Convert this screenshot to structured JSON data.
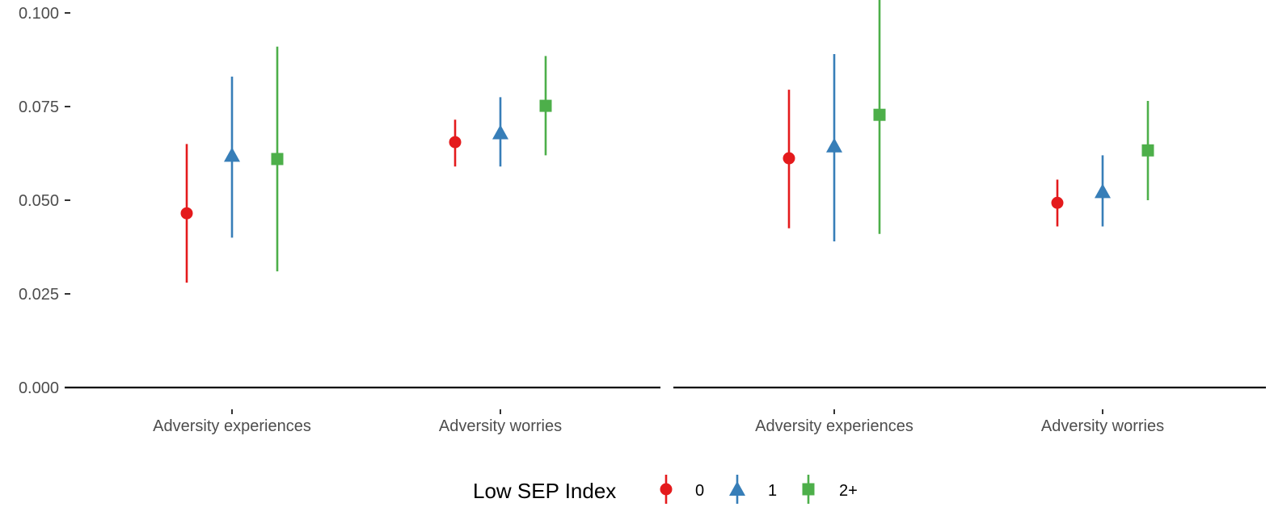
{
  "chart_data": {
    "type": "scatter",
    "subtype": "point-range",
    "ylim": [
      0,
      0.1
    ],
    "y_ticks": [
      "0.000",
      "0.025",
      "0.050",
      "0.075",
      "0.100"
    ],
    "y_tick_values": [
      0,
      0.025,
      0.05,
      0.075,
      0.1
    ],
    "categories": [
      "Adversity experiences",
      "Adversity worries"
    ],
    "legend": {
      "title": "Low SEP Index",
      "position": "bottom",
      "entries": [
        {
          "label": "0",
          "color": "#e41a1c",
          "shape": "circle"
        },
        {
          "label": "1",
          "color": "#377eb8",
          "shape": "triangle"
        },
        {
          "label": "2+",
          "color": "#4daf4a",
          "shape": "square"
        }
      ]
    },
    "panels": [
      {
        "series": [
          {
            "name": "0",
            "values": [
              0.0465,
              0.0655
            ],
            "lower": [
              0.028,
              0.059
            ],
            "upper": [
              0.065,
              0.0715
            ]
          },
          {
            "name": "1",
            "values": [
              0.062,
              0.068
            ],
            "lower": [
              0.04,
              0.059
            ],
            "upper": [
              0.083,
              0.0775
            ]
          },
          {
            "name": "2+",
            "values": [
              0.061,
              0.0752
            ],
            "lower": [
              0.031,
              0.062
            ],
            "upper": [
              0.091,
              0.0885
            ]
          }
        ]
      },
      {
        "series": [
          {
            "name": "0",
            "values": [
              0.0612,
              0.0493
            ],
            "lower": [
              0.0425,
              0.043
            ],
            "upper": [
              0.0795,
              0.0555
            ]
          },
          {
            "name": "1",
            "values": [
              0.0645,
              0.0523
            ],
            "lower": [
              0.039,
              0.043
            ],
            "upper": [
              0.089,
              0.062
            ]
          },
          {
            "name": "2+",
            "values": [
              0.0728,
              0.0633
            ],
            "lower": [
              0.041,
              0.05
            ],
            "upper": [
              0.106,
              0.0765
            ]
          }
        ]
      }
    ],
    "grid": false
  }
}
